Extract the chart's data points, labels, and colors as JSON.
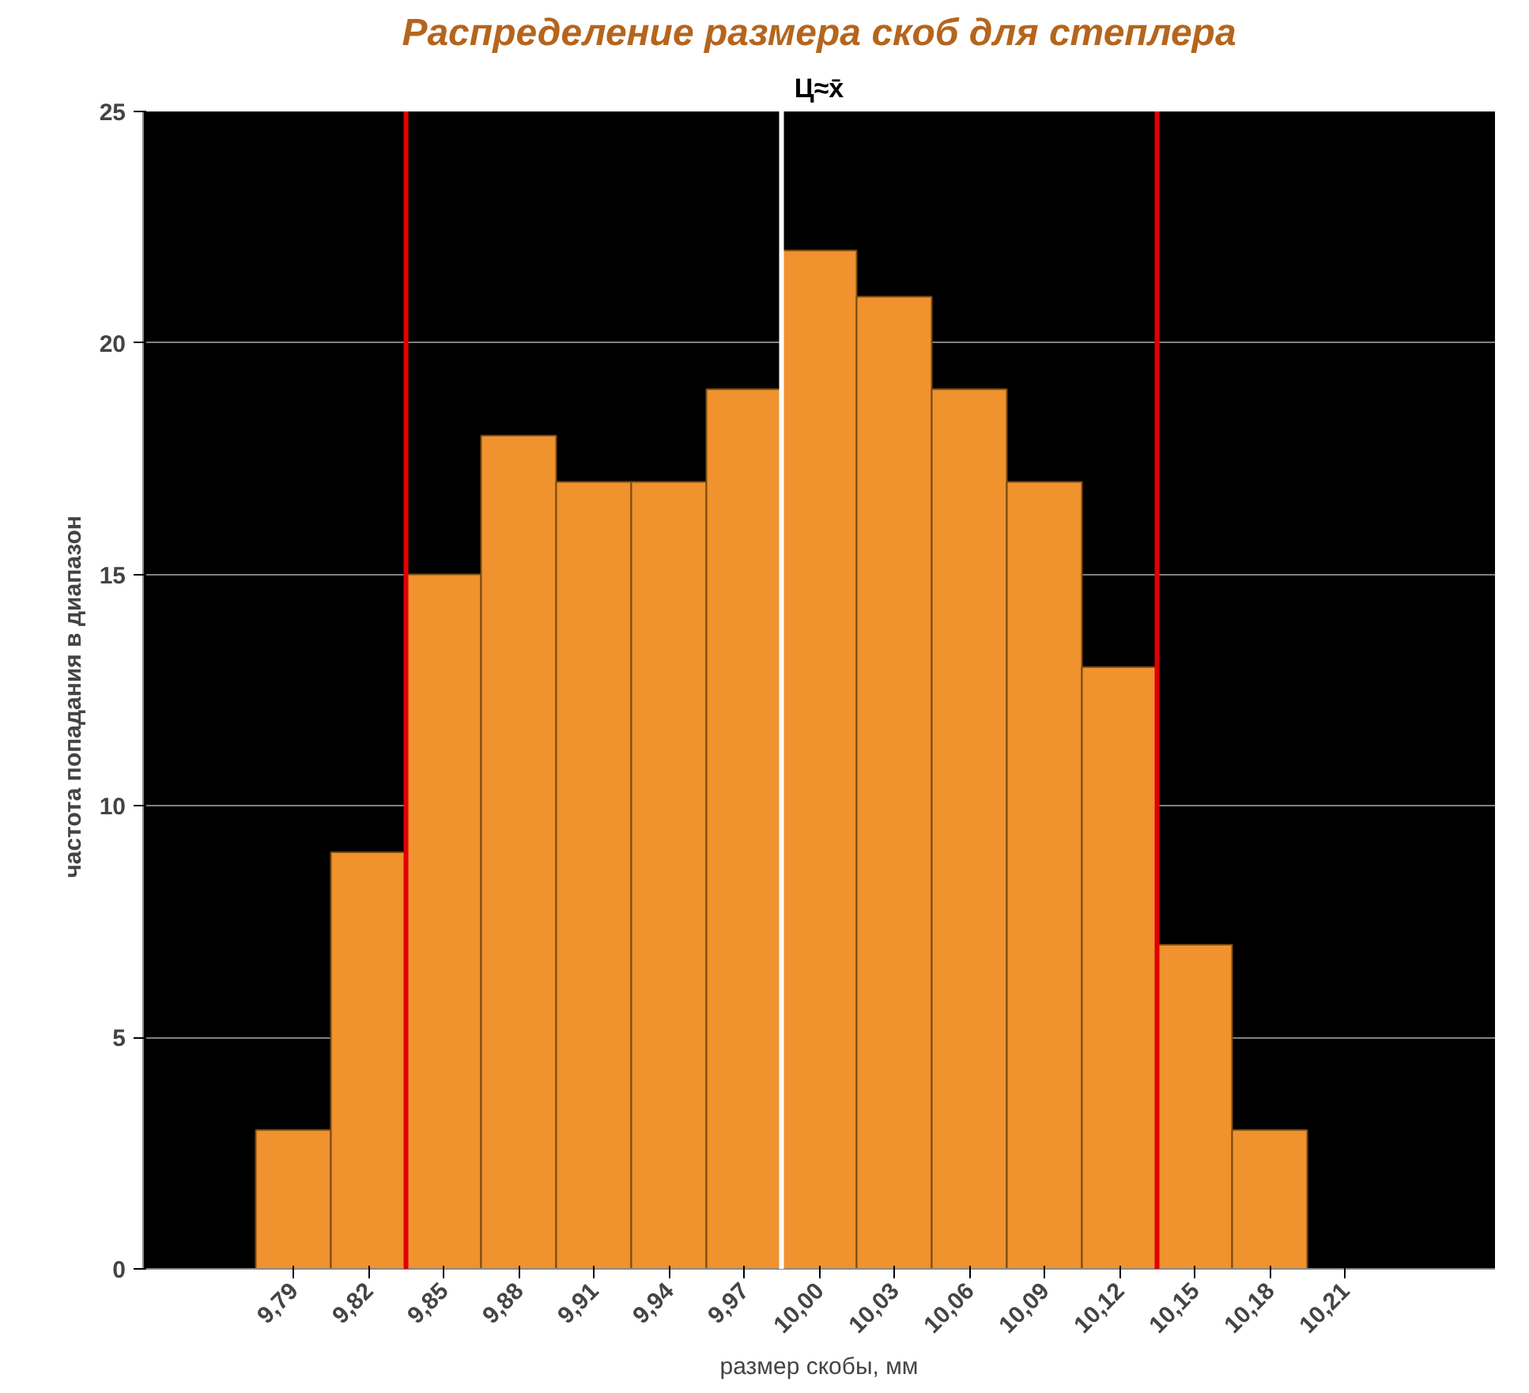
{
  "chart_data": {
    "type": "bar",
    "title": "Распределение размера скоб для степлера",
    "subtitle": "Ц≈x̄",
    "xlabel": "размер скобы, мм",
    "ylabel": "частота  попадания  в диапазон",
    "x": [
      9.79,
      9.82,
      9.85,
      9.88,
      9.91,
      9.94,
      9.97,
      10.0,
      10.03,
      10.06,
      10.09,
      10.12,
      10.15,
      10.18
    ],
    "values": [
      3,
      9,
      15,
      18,
      17,
      17,
      19,
      22,
      21,
      19,
      17,
      13,
      7,
      3
    ],
    "color": "#f0922e",
    "xlim": [
      9.73,
      10.27
    ],
    "xticks": [
      {
        "value": 9.79,
        "label": "9,79"
      },
      {
        "value": 9.82,
        "label": "9,82"
      },
      {
        "value": 9.85,
        "label": "9,85"
      },
      {
        "value": 9.88,
        "label": "9,88"
      },
      {
        "value": 9.91,
        "label": "9,91"
      },
      {
        "value": 9.94,
        "label": "9,94"
      },
      {
        "value": 9.97,
        "label": "9,97"
      },
      {
        "value": 10.0,
        "label": "10,00"
      },
      {
        "value": 10.03,
        "label": "10,03"
      },
      {
        "value": 10.06,
        "label": "10,06"
      },
      {
        "value": 10.09,
        "label": "10,09"
      },
      {
        "value": 10.12,
        "label": "10,12"
      },
      {
        "value": 10.15,
        "label": "10,15"
      },
      {
        "value": 10.18,
        "label": "10,18"
      },
      {
        "value": 10.21,
        "label": "10,21"
      }
    ],
    "ylim": [
      0,
      25
    ],
    "yticks": [
      0,
      5,
      10,
      15,
      20,
      25
    ],
    "grid": "y",
    "ref_lines": [
      {
        "axis": "x",
        "value": 9.835,
        "color": "#e00000"
      },
      {
        "axis": "x",
        "value": 9.985,
        "color": "#ffffff"
      },
      {
        "axis": "x",
        "value": 10.135,
        "color": "#e00000"
      }
    ]
  }
}
